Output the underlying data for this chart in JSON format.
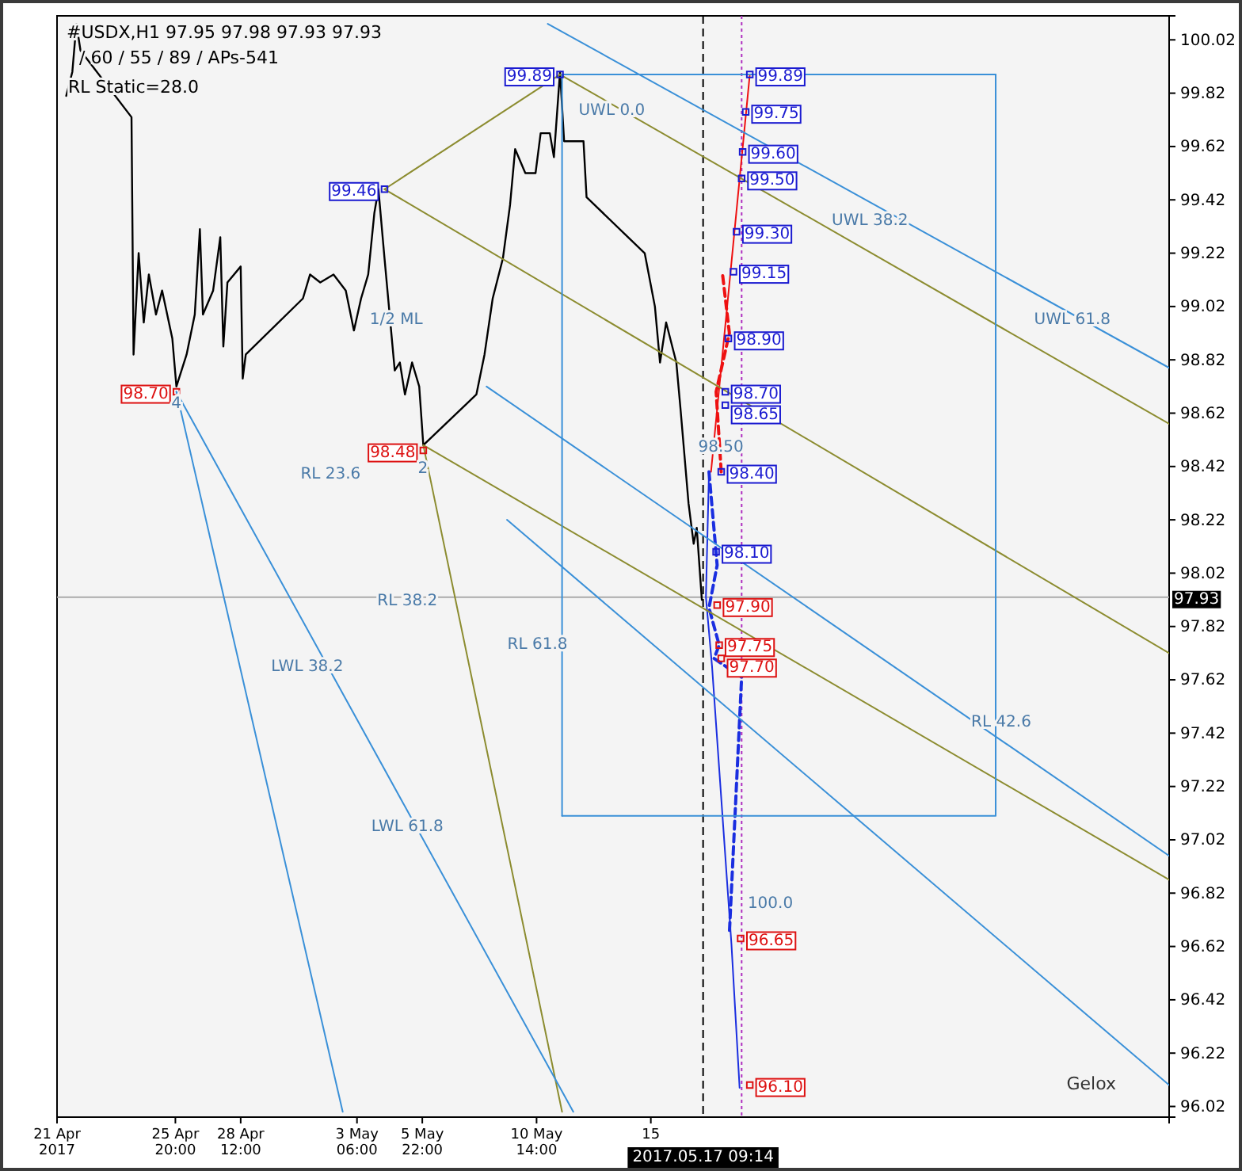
{
  "chart_data": {
    "type": "line",
    "title": "#USDX,H1  97.95 97.98 97.93 97.93",
    "subtitle": "/ 60 / 55 / 89 / APs-541",
    "xlim": [
      "2017-04-21",
      "2017-06-05T10:00"
    ],
    "ylim": [
      95.98,
      100.11
    ],
    "xticks": [
      {
        "value": "2017-04-21",
        "label": "21 Apr 2017"
      },
      {
        "value": "2017-04-25T20:00",
        "label": "25 Apr 20:00"
      },
      {
        "value": "2017-04-28T12:00",
        "label": "28 Apr 12:00"
      },
      {
        "value": "2017-05-03T06:00",
        "label": "3 May 06:00"
      },
      {
        "value": "2017-05-05T22:00",
        "label": "5 May 22:00"
      },
      {
        "value": "2017-05-10T14:00",
        "label": "10 May 14:00"
      },
      {
        "value": "2017-05-15T06:00",
        "label": "15"
      }
    ],
    "yticks": [
      96.02,
      96.22,
      96.42,
      96.62,
      96.82,
      97.02,
      97.22,
      97.42,
      97.62,
      97.82,
      98.02,
      98.22,
      98.42,
      98.62,
      98.82,
      99.02,
      99.22,
      99.42,
      99.62,
      99.82,
      100.02
    ],
    "grid": false,
    "series": [
      {
        "color": "#000000",
        "x": [
          "2017-04-21T09:00",
          "2017-04-21T15:00",
          "2017-04-21T19:00",
          "2017-04-21T23:00",
          "2017-04-24T01:00",
          "2017-04-24T03:00",
          "2017-04-24T08:00",
          "2017-04-24T13:00",
          "2017-04-24T18:00",
          "2017-04-25T01:00",
          "2017-04-25T07:00",
          "2017-04-25T17:00",
          "2017-04-25T21:00",
          "2017-04-26T07:00",
          "2017-04-26T15:00",
          "2017-04-26T20:00",
          "2017-04-26T23:00",
          "2017-04-27T09:00",
          "2017-04-27T16:00",
          "2017-04-27T19:00",
          "2017-04-27T23:00",
          "2017-04-28T12:00",
          "2017-04-28T14:00",
          "2017-04-28T17:00",
          "2017-05-01T01:00",
          "2017-05-01T08:00",
          "2017-05-01T18:00",
          "2017-05-02T07:00",
          "2017-05-02T19:00",
          "2017-05-03T03:00",
          "2017-05-03T10:00",
          "2017-05-03T17:00",
          "2017-05-03T23:00",
          "2017-05-04T03:00",
          "2017-05-04T09:00",
          "2017-05-04T19:00",
          "2017-05-05T00:00",
          "2017-05-05T05:00",
          "2017-05-05T12:00",
          "2017-05-05T19:00",
          "2017-05-05T23:00",
          "2017-05-08T03:00",
          "2017-05-08T11:00",
          "2017-05-08T19:00",
          "2017-05-09T05:00",
          "2017-05-09T12:00",
          "2017-05-09T17:00",
          "2017-05-10T03:00",
          "2017-05-10T13:00",
          "2017-05-10T18:00",
          "2017-05-11T03:00",
          "2017-05-11T07:00",
          "2017-05-11T13:00",
          "2017-05-11T17:00",
          "2017-05-12T05:00",
          "2017-05-12T12:00",
          "2017-05-12T15:00",
          "2017-05-15T00:00",
          "2017-05-15T10:00",
          "2017-05-15T15:00",
          "2017-05-15T21:00",
          "2017-05-16T07:00",
          "2017-05-16T11:00",
          "2017-05-16T19:00",
          "2017-05-17T00:00",
          "2017-05-17T03:00",
          "2017-05-17T08:00"
        ],
        "values": [
          99.81,
          99.9,
          100.08,
          99.98,
          99.73,
          98.84,
          99.22,
          98.96,
          99.14,
          98.99,
          99.08,
          98.9,
          98.72,
          98.84,
          98.99,
          99.31,
          98.99,
          99.08,
          99.28,
          98.87,
          99.11,
          99.17,
          98.75,
          98.84,
          99.05,
          99.14,
          99.11,
          99.14,
          99.08,
          98.93,
          99.05,
          99.14,
          99.37,
          99.46,
          99.2,
          98.78,
          98.81,
          98.69,
          98.81,
          98.72,
          98.5,
          98.69,
          98.84,
          99.05,
          99.2,
          99.4,
          99.61,
          99.52,
          99.52,
          99.67,
          99.67,
          99.58,
          99.9,
          99.64,
          99.64,
          99.64,
          99.43,
          99.22,
          99.02,
          98.81,
          98.96,
          98.81,
          98.64,
          98.28,
          98.13,
          98.19,
          97.92
        ]
      },
      {
        "color": "#ee1111",
        "x": [
          "2017-05-17T17:00",
          "2017-05-19T07:00"
        ],
        "values": [
          98.4,
          99.89
        ]
      },
      {
        "color": "#ee1111",
        "line_style": "dashed",
        "x": [
          "2017-05-18T03:00",
          "2017-05-17T22:00",
          "2017-05-18T11:00",
          "2017-05-18T04:00"
        ],
        "values": [
          98.4,
          98.7,
          98.92,
          99.15
        ]
      },
      {
        "color": "#1a2ee0",
        "x": [
          "2017-05-17T15:00",
          "2017-05-17T12:00",
          "2017-05-17T18:00",
          "2017-05-18T13:00",
          "2017-05-18T21:00"
        ],
        "values": [
          98.4,
          97.93,
          97.67,
          96.63,
          96.09
        ]
      },
      {
        "color": "#1a2ee0",
        "line_style": "dashed",
        "x": [
          "2017-05-17T15:00",
          "2017-05-17T23:00",
          "2017-05-17T15:00",
          "2017-05-18T01:00",
          "2017-05-17T20:00",
          "2017-05-18T23:00",
          "2017-05-18T11:00"
        ],
        "values": [
          98.4,
          98.05,
          97.89,
          97.75,
          97.7,
          97.63,
          96.67
        ]
      },
      {
        "color": "#8c8c30",
        "x": [
          "2017-05-04T09:00",
          "2017-05-11T13:00"
        ],
        "values": [
          99.46,
          99.89
        ]
      },
      {
        "color": "#8c8c30",
        "x": [
          "2017-05-11T13:00",
          "2017-06-05T10:00"
        ],
        "values": [
          99.89,
          98.58
        ]
      },
      {
        "color": "#8c8c30",
        "x": [
          "2017-05-04T09:00",
          "2017-06-05T10:00"
        ],
        "values": [
          99.46,
          97.72
        ]
      },
      {
        "color": "#8c8c30",
        "x": [
          "2017-05-05T23:00",
          "2017-06-05T10:00"
        ],
        "values": [
          98.5,
          96.87
        ]
      },
      {
        "color": "#8c8c30",
        "x": [
          "2017-05-05T23:00",
          "2017-05-11T15:00"
        ],
        "values": [
          98.5,
          96.0
        ]
      },
      {
        "color": "#3a90d8",
        "x": [
          "2017-04-25T21:00",
          "2017-05-02T16:00"
        ],
        "values": [
          98.7,
          96.0
        ]
      },
      {
        "color": "#3a90d8",
        "x": [
          "2017-04-25T21:00",
          "2017-05-12T02:00"
        ],
        "values": [
          98.7,
          96.0
        ]
      },
      {
        "color": "#3a90d8",
        "x": [
          "2017-05-11T01:00",
          "2017-06-05T10:00"
        ],
        "values": [
          100.08,
          98.79
        ]
      },
      {
        "color": "#3a90d8",
        "x": [
          "2017-05-08T13:00",
          "2017-06-05T10:00"
        ],
        "values": [
          98.72,
          96.96
        ]
      },
      {
        "color": "#3a90d8",
        "x": [
          "2017-05-09T09:00",
          "2017-06-05T10:00"
        ],
        "values": [
          98.22,
          96.1
        ]
      },
      {
        "color": "#3a90d8",
        "x": [
          "2017-05-11T15:00",
          "2017-05-11T15:00",
          "2017-05-29T08:00"
        ],
        "values": [
          97.11,
          99.89,
          99.89
        ]
      },
      {
        "color": "#3a90d8",
        "x": [
          "2017-05-11T15:00",
          "2017-05-29T08:00",
          "2017-05-29T08:00"
        ],
        "values": [
          97.11,
          97.11,
          99.89
        ]
      },
      {
        "color": "#1a1ad0",
        "type": "scatter",
        "marker": "square",
        "x": [
          "2017-05-19T07:00",
          "2017-05-19T03:00",
          "2017-05-19T00:00",
          "2017-05-18T23:00",
          "2017-05-18T18:00",
          "2017-05-18T15:00",
          "2017-05-18T10:00",
          "2017-05-18T07:00",
          "2017-05-18T07:00",
          "2017-05-18T03:00",
          "2017-05-17T22:00"
        ],
        "values": [
          99.89,
          99.75,
          99.6,
          99.5,
          99.3,
          99.15,
          98.9,
          98.7,
          98.65,
          98.4,
          98.1
        ],
        "value_labels": [
          "99.89",
          "99.75",
          "99.60",
          "99.50",
          "99.30",
          "99.15",
          "98.90",
          "98.70",
          "98.65",
          "98.40",
          "98.10"
        ]
      },
      {
        "color": "#dd1111",
        "type": "scatter",
        "marker": "square",
        "x": [
          "2017-05-17T23:00",
          "2017-05-18T01:00",
          "2017-05-18T03:00",
          "2017-05-18T22:00",
          "2017-05-19T07:00"
        ],
        "values": [
          97.9,
          97.75,
          97.7,
          96.65,
          96.1
        ],
        "value_labels": [
          "97.90",
          "97.75",
          "97.70",
          "96.65",
          "96.10"
        ]
      },
      {
        "color": "#1a1ad0",
        "type": "scatter",
        "marker": "square",
        "x": [
          "2017-05-11T13:00",
          "2017-05-04T09:00"
        ],
        "values": [
          99.89,
          99.46
        ],
        "value_labels": [
          "99.89",
          "99.46"
        ]
      },
      {
        "color": "#dd1111",
        "type": "scatter",
        "marker": "square",
        "x": [
          "2017-04-25T21:00",
          "2017-05-05T23:00"
        ],
        "values": [
          98.7,
          98.48
        ],
        "value_labels": [
          "98.70",
          "98.48"
        ]
      }
    ],
    "ref_lines": [
      {
        "axis": "x",
        "value": "2017-05-17T09:14",
        "label": "2017.05.17 09:14",
        "color": "#000000",
        "line_style": "dashed"
      },
      {
        "axis": "x",
        "value": "2017-05-18T23:00",
        "color": "#b030c0",
        "line_style": "dotted"
      },
      {
        "axis": "y",
        "value": 97.93,
        "label": "97.93",
        "color": "#aaaaaa"
      }
    ],
    "annotations": [
      "RL Static=28.0",
      "Gelox",
      "1/2 ML",
      "UWL 0.0",
      "UWL 38.2",
      "UWL 61.8",
      "LWL 38.2",
      "LWL 61.8",
      "RL 23.6",
      "RL 38.2",
      "RL 61.8",
      "RL 42.6",
      "100.0",
      "2",
      "98.50",
      {
        "text": "4",
        "x": "2017-04-25T21:00",
        "y": 98.64
      }
    ]
  }
}
